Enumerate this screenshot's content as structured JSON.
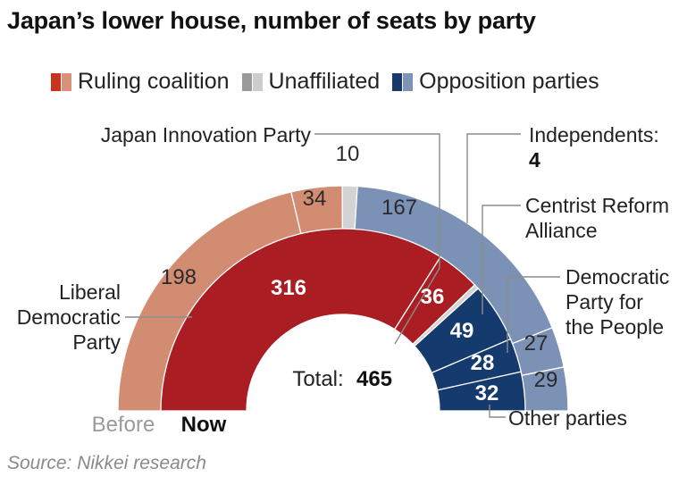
{
  "title": "Japan’s lower house, number of seats by party",
  "legend": [
    {
      "label": "Ruling coalition",
      "colors": [
        "#c9341f",
        "#d9927a"
      ]
    },
    {
      "label": "Unaffiliated",
      "colors": [
        "#9a9a9a",
        "#cccccc"
      ]
    },
    {
      "label": "Opposition parties",
      "colors": [
        "#17396b",
        "#7d94b8"
      ]
    }
  ],
  "source": "Source: Nikkei research",
  "total_label": "Total:",
  "total_value": "465",
  "ring_labels": {
    "before": "Before",
    "now": "Now"
  },
  "chart_data": {
    "type": "pie",
    "subtype": "nested-semicircle-donut",
    "title": "Japan’s lower house, number of seats by party",
    "total": 465,
    "rings": [
      {
        "name": "Before",
        "segments": [
          {
            "party": "Liberal Democratic Party",
            "seats": 198,
            "group": "ruling",
            "color": "#d28c72"
          },
          {
            "party": "Japan Innovation Party",
            "seats": 34,
            "group": "ruling",
            "color": "#d28c72"
          },
          {
            "party": "Independents",
            "seats": 10,
            "group": "unaffiliated",
            "color": "#d3d3d3"
          },
          {
            "party": "Centrist Reform Alliance",
            "seats": 167,
            "group": "opposition",
            "color": "#7b91b6"
          },
          {
            "party": "Democratic Party for the People",
            "seats": 27,
            "group": "opposition",
            "color": "#7b91b6"
          },
          {
            "party": "Other parties",
            "seats": 29,
            "group": "opposition",
            "color": "#7b91b6"
          }
        ]
      },
      {
        "name": "Now",
        "segments": [
          {
            "party": "Liberal Democratic Party",
            "seats": 316,
            "group": "ruling",
            "color": "#a91d23"
          },
          {
            "party": "Japan Innovation Party",
            "seats": 36,
            "group": "ruling",
            "color": "#a91d23"
          },
          {
            "party": "Independents",
            "seats": 4,
            "group": "unaffiliated",
            "color": "#d3d3d3"
          },
          {
            "party": "Centrist Reform Alliance",
            "seats": 49,
            "group": "opposition",
            "color": "#153a6e"
          },
          {
            "party": "Democratic Party for the People",
            "seats": 28,
            "group": "opposition",
            "color": "#153a6e"
          },
          {
            "party": "Other parties",
            "seats": 32,
            "group": "opposition",
            "color": "#153a6e"
          }
        ]
      }
    ],
    "annotations": [
      {
        "text": "Japan Innovation Party"
      },
      {
        "text": "Independents:"
      },
      {
        "text": "Centrist Reform Alliance"
      },
      {
        "text": "Democratic Party for the People"
      },
      {
        "text": "Liberal Democratic Party"
      },
      {
        "text": "Other parties"
      }
    ]
  }
}
